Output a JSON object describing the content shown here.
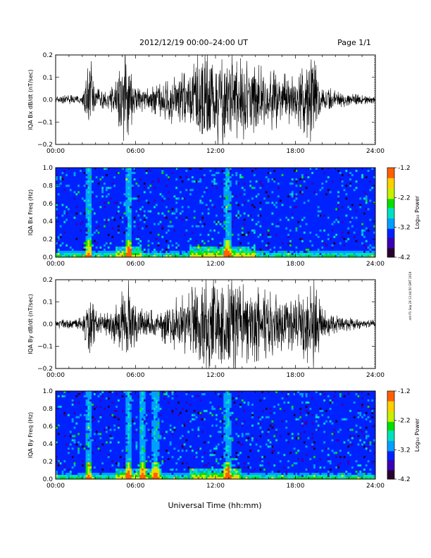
{
  "header": {
    "date_range": "2012/12/19   00:00–24:00 UT",
    "page": "Page 1/1"
  },
  "x_axis": {
    "label": "Universal Time (hh:mm)",
    "ticks": [
      "00:00",
      "06:00",
      "12:00",
      "18:00",
      "24:00"
    ]
  },
  "side_note": "mlt P1 Sep 29 13:44:50 GMT 2019",
  "chart_data": [
    {
      "type": "line",
      "ylabel": "IQA Bx dB/dt (nT/sec)",
      "ylim": [
        -0.2,
        0.2
      ],
      "yticks": [
        "0.2",
        "0.1",
        "0.0",
        "−0.1",
        "−0.2"
      ],
      "xlim": [
        0,
        24
      ],
      "envelope": {
        "time_hours": [
          0,
          1,
          2,
          2.6,
          3,
          4,
          4.5,
          5.2,
          5.5,
          6,
          7,
          8,
          9,
          10,
          10.5,
          11,
          11.5,
          12,
          12.5,
          13,
          13.5,
          14,
          15,
          16,
          17,
          18,
          19,
          19.3,
          20,
          21,
          22,
          23,
          24
        ],
        "amplitude": [
          0.02,
          0.02,
          0.02,
          0.2,
          0.05,
          0.04,
          0.08,
          0.2,
          0.15,
          0.06,
          0.05,
          0.08,
          0.12,
          0.12,
          0.2,
          0.2,
          0.2,
          0.2,
          0.2,
          0.2,
          0.2,
          0.18,
          0.16,
          0.14,
          0.12,
          0.1,
          0.18,
          0.2,
          0.07,
          0.04,
          0.03,
          0.02,
          0.02
        ]
      }
    },
    {
      "type": "heatmap",
      "ylabel": "IQA Bx Freq (Hz)",
      "ylim": [
        0.0,
        1.0
      ],
      "yticks": [
        "1.0",
        "0.8",
        "0.6",
        "0.4",
        "0.2",
        "0.0"
      ],
      "xlim": [
        0,
        24
      ],
      "colorbar": {
        "label": "Log₁₀ Power",
        "ticks": [
          "-1.2",
          "-2.2",
          "-3.2",
          "-4.2"
        ],
        "range": [
          -4.2,
          -1.2
        ]
      },
      "features": {
        "vertical_lines_hours": [
          2.5,
          5.5,
          12.9
        ],
        "low_freq_band_hours": [
          [
            4.5,
            6.5
          ],
          [
            10,
            15
          ]
        ]
      }
    },
    {
      "type": "line",
      "ylabel": "IQA By dB/dt (nT/sec)",
      "ylim": [
        -0.2,
        0.2
      ],
      "yticks": [
        "0.2",
        "0.1",
        "0.0",
        "−0.1",
        "−0.2"
      ],
      "xlim": [
        0,
        24
      ],
      "envelope": {
        "time_hours": [
          0,
          1,
          2,
          2.6,
          3,
          4,
          4.5,
          5.5,
          6,
          7,
          8,
          9,
          10,
          10.5,
          11,
          11.5,
          12,
          12.5,
          13,
          13.5,
          14,
          15,
          16,
          17,
          18,
          19,
          19.4,
          20,
          21,
          22,
          23,
          24
        ],
        "amplitude": [
          0.02,
          0.02,
          0.03,
          0.2,
          0.06,
          0.05,
          0.1,
          0.2,
          0.08,
          0.06,
          0.08,
          0.12,
          0.14,
          0.2,
          0.2,
          0.2,
          0.2,
          0.2,
          0.2,
          0.2,
          0.18,
          0.17,
          0.15,
          0.12,
          0.12,
          0.18,
          0.2,
          0.07,
          0.04,
          0.03,
          0.02,
          0.02
        ]
      }
    },
    {
      "type": "heatmap",
      "ylabel": "IQA By Freq (Hz)",
      "ylim": [
        0.0,
        1.0
      ],
      "yticks": [
        "1.0",
        "0.8",
        "0.6",
        "0.4",
        "0.2",
        "0.0"
      ],
      "xlim": [
        0,
        24
      ],
      "colorbar": {
        "label": "Log₁₀ Power",
        "ticks": [
          "-1.2",
          "-2.2",
          "-3.2",
          "-4.2"
        ],
        "range": [
          -4.2,
          -1.2
        ]
      },
      "features": {
        "vertical_lines_hours": [
          2.5,
          5.5,
          6.5,
          7.5,
          12.9
        ],
        "low_freq_band_hours": [
          [
            4.5,
            8
          ],
          [
            10,
            14
          ]
        ]
      }
    }
  ],
  "colors": {
    "trace": "#000000",
    "spectro_bg": "#1e22c8",
    "colormap": [
      "#2a0030",
      "#3b00b4",
      "#0022ff",
      "#00a0ff",
      "#00e0c0",
      "#00e000",
      "#c8f000",
      "#ffd000",
      "#ff6000",
      "#ff0000"
    ]
  }
}
